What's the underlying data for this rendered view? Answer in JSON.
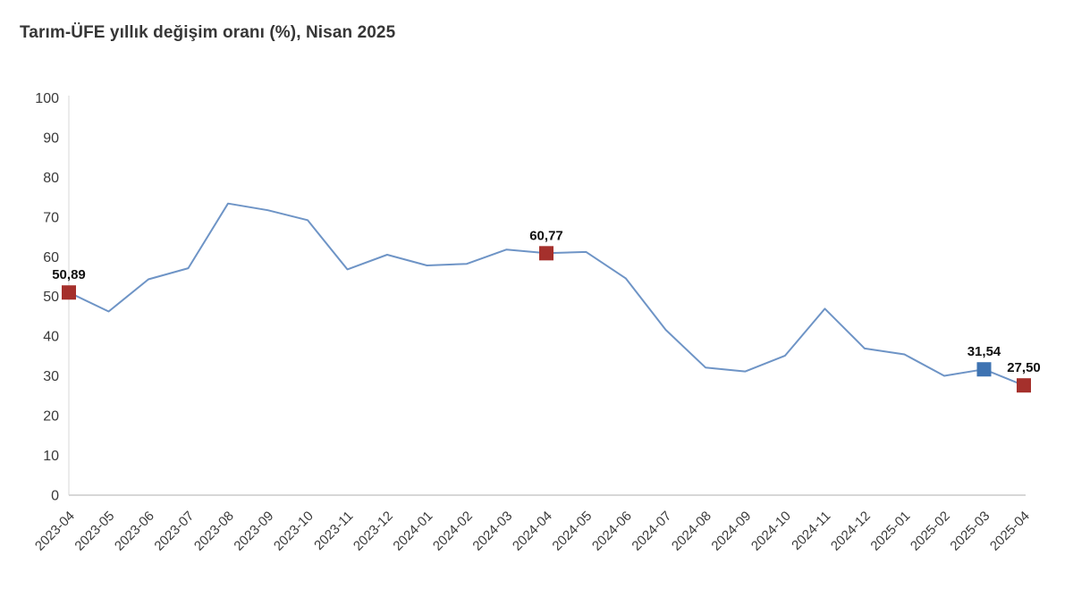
{
  "chart_data": {
    "type": "line",
    "title": "Tarım-ÜFE yıllık değişim oranı (%), Nisan 2025",
    "categories": [
      "2023-04",
      "2023-05",
      "2023-06",
      "2023-07",
      "2023-08",
      "2023-09",
      "2023-10",
      "2023-11",
      "2023-12",
      "2024-01",
      "2024-02",
      "2024-03",
      "2024-04",
      "2024-05",
      "2024-06",
      "2024-07",
      "2024-08",
      "2024-09",
      "2024-10",
      "2024-11",
      "2024-12",
      "2025-01",
      "2025-02",
      "2025-03",
      "2025-04"
    ],
    "values": [
      50.89,
      46.1,
      54.2,
      57.0,
      73.3,
      71.6,
      69.1,
      56.7,
      60.4,
      57.7,
      58.1,
      61.7,
      60.77,
      61.1,
      54.4,
      41.5,
      32.0,
      31.0,
      35.0,
      46.8,
      36.8,
      35.3,
      29.9,
      31.54,
      27.5
    ],
    "xlabel": "",
    "ylabel": "",
    "ylim": [
      0,
      100
    ],
    "y_ticks": [
      0,
      10,
      20,
      30,
      40,
      50,
      60,
      70,
      80,
      90,
      100
    ],
    "grid": false,
    "legend": "none",
    "highlighted_points": [
      {
        "category": "2023-04",
        "index": 0,
        "value": 50.89,
        "label": "50,89",
        "marker_color": "#a5302c"
      },
      {
        "category": "2024-04",
        "index": 12,
        "value": 60.77,
        "label": "60,77",
        "marker_color": "#a5302c"
      },
      {
        "category": "2025-03",
        "index": 23,
        "value": 31.54,
        "label": "31,54",
        "marker_color": "#3e73b2"
      },
      {
        "category": "2025-04",
        "index": 24,
        "value": 27.5,
        "label": "27,50",
        "marker_color": "#a5302c"
      }
    ],
    "colors": {
      "line": "#6e94c6",
      "axis_line": "#d7d7d7",
      "tick_label": "#3a3a3a",
      "point_label": "#101010",
      "background": "#ffffff"
    }
  }
}
